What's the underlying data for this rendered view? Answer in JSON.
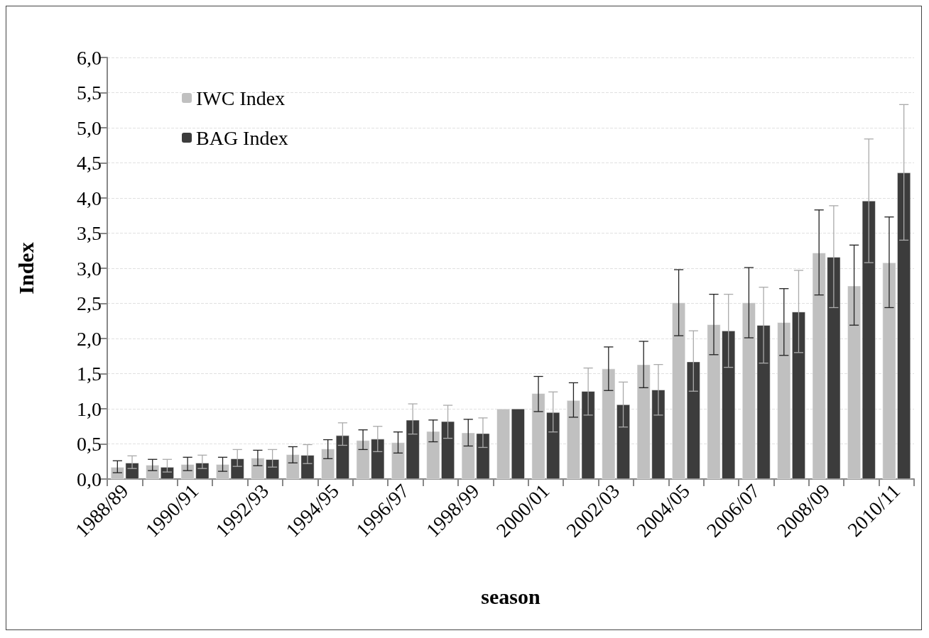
{
  "chart_data": {
    "type": "bar",
    "xlabel": "season",
    "ylabel": "Index",
    "categories": [
      "1988/89",
      null,
      "1990/91",
      null,
      "1992/93",
      null,
      "1994/95",
      null,
      "1996/97",
      null,
      "1998/99",
      null,
      "2000/01",
      null,
      "2002/03",
      null,
      "2004/05",
      null,
      "2006/07",
      null,
      "2008/09",
      null,
      "2010/11"
    ],
    "series": [
      {
        "name": "IWC Index",
        "color": "#c0c0c0",
        "values": [
          0.17,
          0.2,
          0.21,
          0.21,
          0.3,
          0.35,
          0.43,
          0.55,
          0.52,
          0.68,
          0.66,
          1.0,
          1.22,
          1.12,
          1.57,
          1.63,
          2.51,
          2.2,
          2.51,
          2.23,
          3.22,
          2.75,
          3.08
        ],
        "errors": [
          [
            0.09,
            0.26
          ],
          [
            0.12,
            0.28
          ],
          [
            0.12,
            0.31
          ],
          [
            0.11,
            0.31
          ],
          [
            0.19,
            0.41
          ],
          [
            0.23,
            0.46
          ],
          [
            0.29,
            0.56
          ],
          [
            0.42,
            0.7
          ],
          [
            0.37,
            0.67
          ],
          [
            0.53,
            0.84
          ],
          [
            0.47,
            0.85
          ],
          null,
          [
            0.96,
            1.46
          ],
          [
            0.88,
            1.37
          ],
          [
            1.26,
            1.88
          ],
          [
            1.3,
            1.96
          ],
          [
            2.04,
            2.98
          ],
          [
            1.77,
            2.63
          ],
          [
            2.01,
            3.01
          ],
          [
            1.76,
            2.71
          ],
          [
            2.62,
            3.83
          ],
          [
            2.19,
            3.33
          ],
          [
            2.44,
            3.73
          ]
        ]
      },
      {
        "name": "BAG Index",
        "color": "#3c3c3c",
        "values": [
          0.23,
          0.17,
          0.23,
          0.29,
          0.28,
          0.34,
          0.62,
          0.57,
          0.84,
          0.82,
          0.65,
          1.0,
          0.95,
          1.25,
          1.06,
          1.27,
          1.67,
          2.11,
          2.19,
          2.38,
          3.16,
          3.96,
          4.36
        ],
        "errors": [
          [
            0.15,
            0.33
          ],
          [
            0.1,
            0.28
          ],
          [
            0.15,
            0.34
          ],
          [
            0.18,
            0.42
          ],
          [
            0.17,
            0.42
          ],
          [
            0.22,
            0.49
          ],
          [
            0.48,
            0.8
          ],
          [
            0.39,
            0.75
          ],
          [
            0.64,
            1.07
          ],
          [
            0.58,
            1.05
          ],
          [
            0.45,
            0.87
          ],
          null,
          [
            0.67,
            1.24
          ],
          [
            0.91,
            1.58
          ],
          [
            0.74,
            1.38
          ],
          [
            0.91,
            1.63
          ],
          [
            1.25,
            2.11
          ],
          [
            1.59,
            2.63
          ],
          [
            1.65,
            2.73
          ],
          [
            1.8,
            2.97
          ],
          [
            2.44,
            3.89
          ],
          [
            3.08,
            4.84
          ],
          [
            3.4,
            5.33
          ]
        ]
      }
    ],
    "ylim": [
      0,
      6
    ],
    "yticks": [
      {
        "value": 0,
        "label": "0,0"
      },
      {
        "value": 0.5,
        "label": "0,5"
      },
      {
        "value": 1,
        "label": "1,0"
      },
      {
        "value": 1.5,
        "label": "1,5"
      },
      {
        "value": 2,
        "label": "2,0"
      },
      {
        "value": 2.5,
        "label": "2,5"
      },
      {
        "value": 3,
        "label": "3,0"
      },
      {
        "value": 3.5,
        "label": "3,5"
      },
      {
        "value": 4,
        "label": "4,0"
      },
      {
        "value": 4.5,
        "label": "4,5"
      },
      {
        "value": 5,
        "label": "5,0"
      },
      {
        "value": 5.5,
        "label": "5,5"
      },
      {
        "value": 6,
        "label": "6,0"
      }
    ],
    "grid": "y",
    "legend": "top left"
  }
}
